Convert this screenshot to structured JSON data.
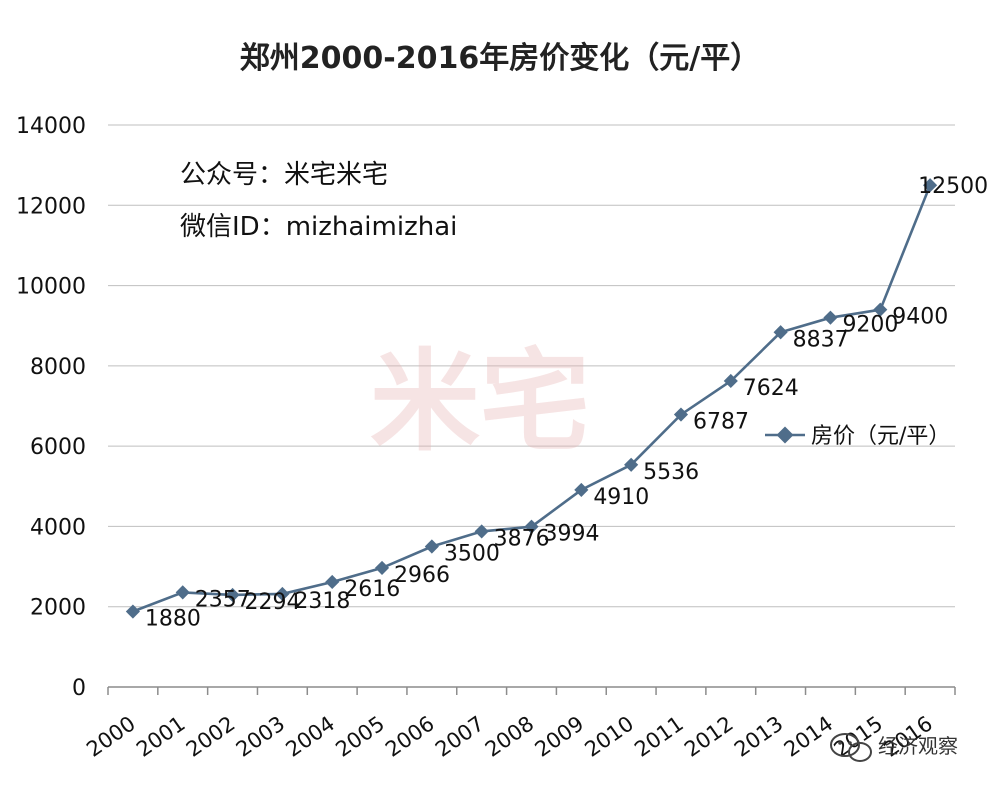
{
  "chart_data": {
    "type": "line",
    "title": "郑州2000-2016年房价变化（元/平）",
    "xlabel": "",
    "ylabel": "",
    "categories": [
      "2000",
      "2001",
      "2002",
      "2003",
      "2004",
      "2005",
      "2006",
      "2007",
      "2008",
      "2009",
      "2010",
      "2011",
      "2012",
      "2013",
      "2014",
      "2015",
      "2016"
    ],
    "x_tick_labels": [
      "2000",
      "2001",
      "2002",
      "2003",
      "2004",
      "2005",
      "2006",
      "2007",
      "2008",
      "2009",
      "2010",
      "2011",
      "2012",
      "2013",
      "2014",
      "2015",
      "2016"
    ],
    "series": [
      {
        "name": "房价（元/平）",
        "values": [
          1880,
          2357,
          2294,
          2318,
          2616,
          2966,
          3500,
          3876,
          3994,
          4910,
          5536,
          6787,
          7624,
          8837,
          9200,
          9400,
          12500
        ]
      }
    ],
    "data_labels": [
      "1880",
      "2357",
      "2294",
      "2318",
      "2616",
      "2966",
      "3500",
      "3876",
      "3994",
      "4910",
      "5536",
      "6787",
      "7624",
      "8837",
      "9200",
      "9400",
      "12500"
    ],
    "ylim": [
      0,
      14000
    ],
    "y_ticks": [
      0,
      2000,
      4000,
      6000,
      8000,
      10000,
      12000,
      14000
    ],
    "y_tick_labels": [
      "0",
      "2000",
      "4000",
      "6000",
      "8000",
      "10000",
      "12000",
      "14000"
    ],
    "grid": true,
    "legend_position": "right",
    "line_color": "#4f6d8a",
    "annotations": [
      "公众号：米宅米宅",
      "微信ID：mizhaimizhai"
    ]
  },
  "watermark": {
    "text": "米宅"
  },
  "credit": {
    "icon": "wechat-icon",
    "text": "经济观察"
  }
}
